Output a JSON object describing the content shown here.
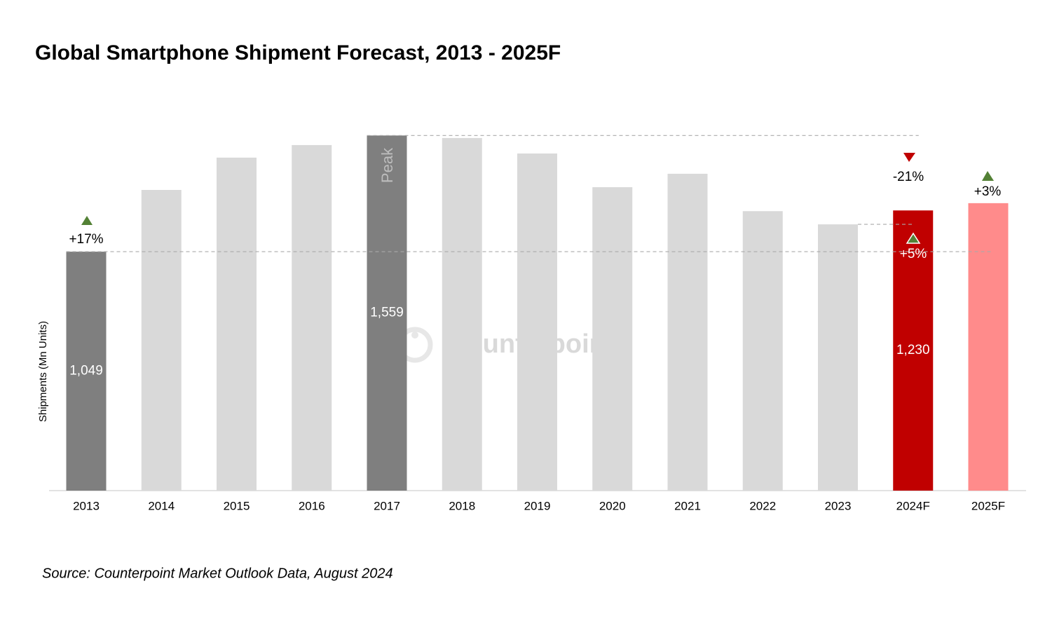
{
  "chart_data": {
    "type": "bar",
    "title": "Global Smartphone Shipment Forecast, 2013 - 2025F",
    "ylabel": "Shipments (Mn Units)",
    "source": "Source: Counterpoint Market Outlook Data, August 2024",
    "watermark": "Counterpoint",
    "categories": [
      "2013",
      "2014",
      "2015",
      "2016",
      "2017",
      "2018",
      "2019",
      "2020",
      "2021",
      "2022",
      "2023",
      "2024F",
      "2025F"
    ],
    "values": [
      1049,
      1320,
      1462,
      1517,
      1559,
      1548,
      1480,
      1332,
      1391,
      1227,
      1169,
      1230,
      1262
    ],
    "value_labels": [
      "1,049",
      null,
      null,
      null,
      "1,559",
      null,
      null,
      null,
      null,
      null,
      null,
      "1,230",
      null
    ],
    "colors": [
      "#7f7f7f",
      "#d9d9d9",
      "#d9d9d9",
      "#d9d9d9",
      "#7f7f7f",
      "#d9d9d9",
      "#d9d9d9",
      "#d9d9d9",
      "#d9d9d9",
      "#d9d9d9",
      "#d9d9d9",
      "#c00000",
      "#ff8b8b"
    ],
    "annotations": [
      "+17%",
      "Peak",
      "-21%",
      "+5%",
      "+3%"
    ],
    "ylim": [
      0,
      1600
    ]
  }
}
